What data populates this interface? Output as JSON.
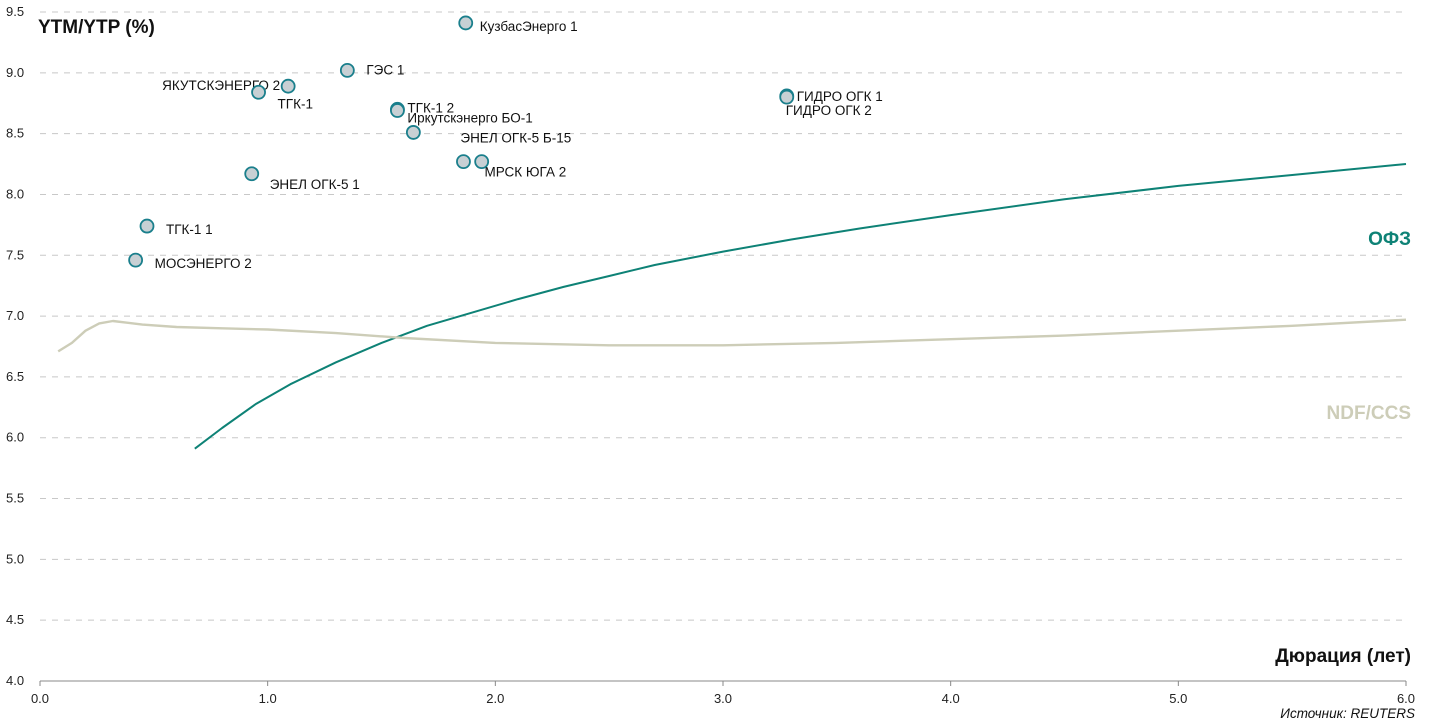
{
  "chart_data": {
    "type": "scatter",
    "title": "",
    "ylabel": "YTM/YTP (%)",
    "xlabel": "Дюрация (лет)",
    "source": "Источник: REUTERS",
    "xlim": [
      0,
      6
    ],
    "ylim": [
      4,
      9.5
    ],
    "xticks": [
      "0.0",
      "1.0",
      "2.0",
      "3.0",
      "4.0",
      "5.0",
      "6.0"
    ],
    "yticks": [
      "4.0",
      "4.5",
      "5.0",
      "5.5",
      "6.0",
      "6.5",
      "7.0",
      "7.5",
      "8.0",
      "8.5",
      "9.0",
      "9.5"
    ],
    "grid": "horizontal dashed",
    "colors": {
      "ofz": "#0e8276",
      "ndf": "#cdcdb8",
      "point_fill": "#c8d0d4",
      "point_stroke": "#1a7f8c"
    },
    "points": [
      {
        "label": "КузбасЭнерго 1",
        "x": 1.87,
        "y": 9.41
      },
      {
        "label": "ГЭС 1",
        "x": 1.35,
        "y": 9.02
      },
      {
        "label": "ЯКУТСКЭНЕРГО 2",
        "x": 1.09,
        "y": 8.89
      },
      {
        "label": "ТГК-1",
        "x": 0.96,
        "y": 8.84
      },
      {
        "label": "ТГК-1 2",
        "x": 1.57,
        "y": 8.7
      },
      {
        "label": "Иркутскэнерго БО-1",
        "x": 1.57,
        "y": 8.69
      },
      {
        "label": "ЭНЕЛ ОГК-5 Б-15",
        "x": 1.64,
        "y": 8.51
      },
      {
        "label": "ГИДРО ОГК 1",
        "x": 3.28,
        "y": 8.81
      },
      {
        "label": "ГИДРО ОГК 2",
        "x": 3.28,
        "y": 8.8
      },
      {
        "label": "МРСК ЮГА 2",
        "x": 1.86,
        "y": 8.27
      },
      {
        "label": "",
        "x": 1.94,
        "y": 8.27
      },
      {
        "label": "ЭНЕЛ ОГК-5 1",
        "x": 0.93,
        "y": 8.17
      },
      {
        "label": "ТГК-1 1",
        "x": 0.47,
        "y": 7.74
      },
      {
        "label": "МОСЭНЕРГО 2",
        "x": 0.42,
        "y": 7.46
      }
    ],
    "series": [
      {
        "name": "ОФЗ",
        "x": [
          0.68,
          0.8,
          0.95,
          1.1,
          1.3,
          1.5,
          1.7,
          1.9,
          2.1,
          2.3,
          2.5,
          2.7,
          3.0,
          3.3,
          3.6,
          4.0,
          4.5,
          5.0,
          5.5,
          6.0
        ],
        "y": [
          5.91,
          6.08,
          6.28,
          6.44,
          6.62,
          6.78,
          6.92,
          7.03,
          7.14,
          7.24,
          7.33,
          7.42,
          7.53,
          7.63,
          7.72,
          7.83,
          7.96,
          8.07,
          8.16,
          8.25
        ]
      },
      {
        "name": "NDF/CCS",
        "x": [
          0.08,
          0.14,
          0.2,
          0.26,
          0.32,
          0.45,
          0.6,
          0.8,
          1.0,
          1.3,
          1.6,
          2.0,
          2.5,
          3.0,
          3.5,
          4.0,
          4.5,
          5.0,
          5.5,
          6.0
        ],
        "y": [
          6.71,
          6.78,
          6.88,
          6.94,
          6.96,
          6.93,
          6.91,
          6.9,
          6.89,
          6.86,
          6.82,
          6.78,
          6.76,
          6.76,
          6.78,
          6.81,
          6.84,
          6.88,
          6.92,
          6.97
        ]
      }
    ]
  }
}
